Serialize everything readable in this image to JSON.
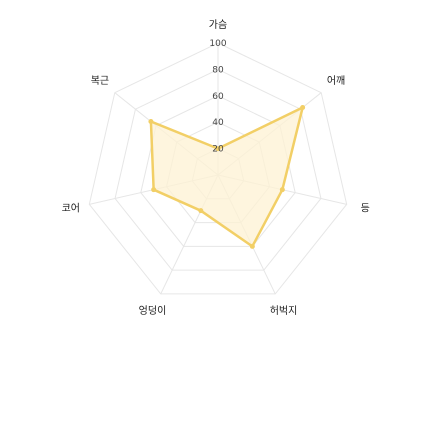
{
  "chart_data": {
    "type": "radar",
    "title": "",
    "axes": [
      "가슴",
      "어깨",
      "등",
      "허벅지",
      "엉덩이",
      "코어",
      "복근"
    ],
    "ticks": [
      20,
      40,
      60,
      80,
      100
    ],
    "range": [
      0,
      100
    ],
    "grid": true,
    "series": [
      {
        "values": [
          20,
          82,
          50,
          60,
          30,
          50,
          65
        ]
      }
    ],
    "colors": {
      "line": "#f2cf66",
      "fill": "#fdf2d3",
      "point": "#f2cf66",
      "grid": "#e6e6e6"
    }
  }
}
